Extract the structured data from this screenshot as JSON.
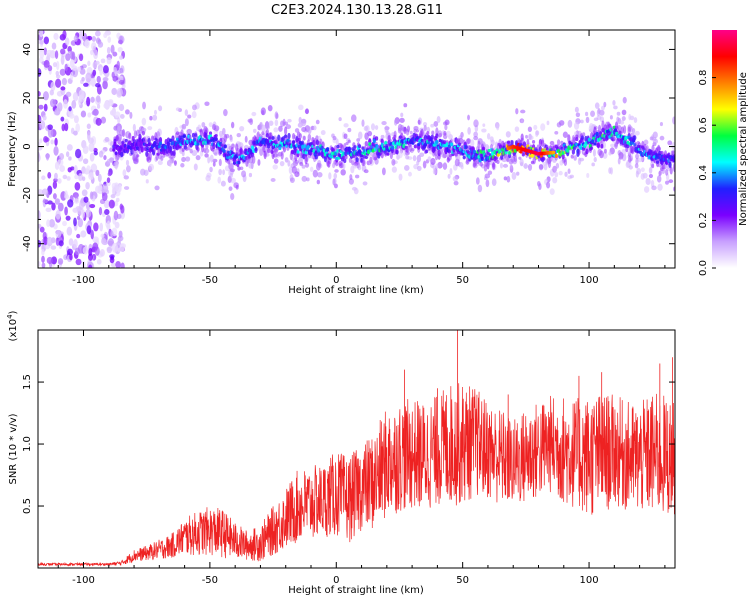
{
  "figure_title": "C2E3.2024.130.13.28.G11",
  "colors": {
    "snr_line": "#ee2222",
    "spectrogram_background": "#ffffff",
    "colormap": [
      "#ffffff",
      "#c8a0ff",
      "#7a00ff",
      "#2020ff",
      "#00ffff",
      "#00ff40",
      "#ffff00",
      "#ff8000",
      "#ff0000",
      "#ff0088"
    ]
  },
  "chart_data": [
    {
      "type": "heatmap",
      "title": "",
      "xlabel": "Height of straight line (km)",
      "ylabel": "Frequency (Hz)",
      "xlim": [
        -118,
        134
      ],
      "ylim": [
        -50,
        48
      ],
      "xticks": [
        -100,
        -50,
        0,
        50,
        100
      ],
      "yticks": [
        -40,
        -20,
        0,
        20,
        40
      ],
      "grid": false,
      "colorbar": {
        "label": "Normalized spectral amplitude",
        "range": [
          0,
          1
        ],
        "ticks": [
          0.0,
          0.2,
          0.4,
          0.6,
          0.8
        ]
      },
      "ridge": {
        "x": [
          -88,
          -80,
          -70,
          -60,
          -50,
          -45,
          -40,
          -35,
          -30,
          -20,
          -10,
          0,
          10,
          15,
          20,
          30,
          40,
          50,
          60,
          70,
          80,
          90,
          100,
          105,
          110,
          115,
          120,
          125,
          134
        ],
        "y": [
          -1,
          1,
          0,
          2,
          3,
          -1,
          -5,
          -3,
          2,
          1,
          -1,
          -3,
          -2,
          0,
          -1,
          3,
          1,
          -2,
          -4,
          0,
          -3,
          -2,
          2,
          4,
          6,
          3,
          -2,
          -4,
          -6
        ],
        "peak_amplitude": [
          0.25,
          0.3,
          0.35,
          0.4,
          0.45,
          0.4,
          0.45,
          0.4,
          0.4,
          0.45,
          0.45,
          0.5,
          0.45,
          0.55,
          0.5,
          0.45,
          0.45,
          0.45,
          0.55,
          0.85,
          0.95,
          0.6,
          0.5,
          0.55,
          0.5,
          0.45,
          0.45,
          0.4,
          0.35
        ]
      },
      "noise_region_x": [
        -118,
        -84
      ]
    },
    {
      "type": "line",
      "title": "",
      "xlabel": "Height of straight line (km)",
      "ylabel": "SNR (10 * v/v)",
      "ylabel_scale": "(x10^4)",
      "xlim": [
        -118,
        134
      ],
      "ylim": [
        0,
        1.92
      ],
      "xticks": [
        -100,
        -50,
        0,
        50,
        100
      ],
      "yticks": [
        0.5,
        1.0,
        1.5
      ],
      "grid": false,
      "series": [
        {
          "x": [
            -118,
            -100,
            -90,
            -85,
            -80,
            -75,
            -70,
            -65,
            -60,
            -55,
            -50,
            -45,
            -40,
            -35,
            -30,
            -25,
            -20,
            -15,
            -10,
            -5,
            0,
            5,
            10,
            15,
            20,
            25,
            30,
            35,
            40,
            45,
            50,
            55,
            60,
            65,
            70,
            75,
            80,
            85,
            90,
            95,
            100,
            105,
            110,
            115,
            120,
            125,
            130,
            134
          ],
          "y": [
            0.03,
            0.03,
            0.03,
            0.04,
            0.1,
            0.12,
            0.15,
            0.18,
            0.25,
            0.28,
            0.3,
            0.28,
            0.22,
            0.18,
            0.2,
            0.3,
            0.4,
            0.5,
            0.52,
            0.55,
            0.6,
            0.55,
            0.65,
            0.7,
            0.85,
            0.9,
            0.92,
            0.9,
            0.95,
            1.0,
            1.0,
            1.02,
            0.95,
            0.9,
            0.85,
            0.9,
            0.95,
            1.0,
            0.95,
            0.92,
            0.9,
            0.92,
            0.95,
            0.9,
            0.88,
            0.92,
            0.9,
            0.88
          ],
          "spread": [
            0.01,
            0.01,
            0.01,
            0.02,
            0.05,
            0.06,
            0.08,
            0.1,
            0.15,
            0.18,
            0.2,
            0.2,
            0.15,
            0.12,
            0.15,
            0.2,
            0.25,
            0.3,
            0.3,
            0.3,
            0.35,
            0.35,
            0.35,
            0.4,
            0.45,
            0.45,
            0.45,
            0.45,
            0.45,
            0.5,
            0.5,
            0.45,
            0.4,
            0.4,
            0.35,
            0.4,
            0.4,
            0.4,
            0.45,
            0.45,
            0.5,
            0.5,
            0.45,
            0.45,
            0.45,
            0.5,
            0.5,
            0.45
          ],
          "spikes": [
            {
              "x": 48,
              "y": 1.92
            },
            {
              "x": 27,
              "y": 1.6
            },
            {
              "x": 96,
              "y": 1.55
            },
            {
              "x": 105,
              "y": 1.58
            },
            {
              "x": 128,
              "y": 1.65
            },
            {
              "x": 133,
              "y": 1.7
            },
            {
              "x": 68,
              "y": 1.4
            },
            {
              "x": 40,
              "y": 1.45
            }
          ]
        }
      ]
    }
  ]
}
